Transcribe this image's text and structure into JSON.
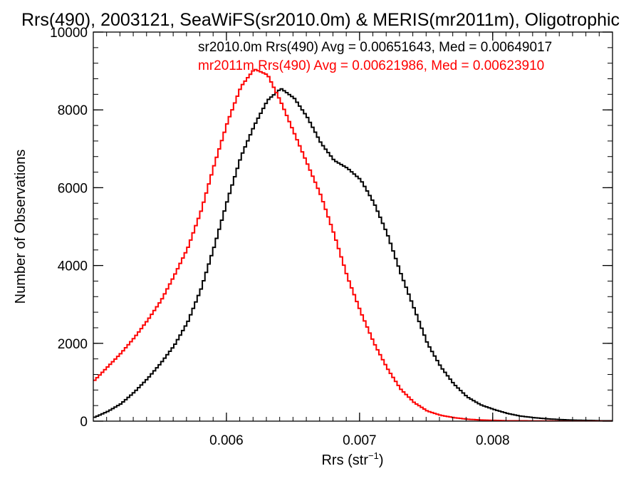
{
  "chart_data": {
    "type": "line",
    "title": "Rrs(490), 2003121, SeaWiFS(sr2010.0m) & MERIS(mr2011m), Oligotrophic",
    "xlabel": "Rrs (str",
    "xlabel_exponent": "−1",
    "xlabel_close": ")",
    "ylabel": "Number of Observations",
    "xlim": [
      0.005,
      0.0089
    ],
    "ylim": [
      0,
      10000
    ],
    "x_ticks": [
      0.006,
      0.007,
      0.008
    ],
    "x_tick_labels": [
      "0.006",
      "0.007",
      "0.008"
    ],
    "y_ticks": [
      0,
      2000,
      4000,
      6000,
      8000,
      10000
    ],
    "y_tick_labels": [
      "0",
      "2000",
      "4000",
      "6000",
      "8000",
      "10000"
    ],
    "grid": false,
    "legend_position": "top-right",
    "legend": [
      "sr2010.0m Rrs(490) Avg = 0.00651643, Med = 0.00649017",
      "mr2011m Rrs(490) Avg = 0.00621986, Med = 0.00623910"
    ],
    "series": [
      {
        "name": "sr2010.0m",
        "color": "#000000",
        "x": [
          0.005,
          0.0051,
          0.0052,
          0.0053,
          0.0054,
          0.0055,
          0.0056,
          0.0057,
          0.0058,
          0.0059,
          0.006,
          0.0061,
          0.0062,
          0.0063,
          0.0064,
          0.0065,
          0.0066,
          0.0067,
          0.0068,
          0.0069,
          0.007,
          0.0071,
          0.0072,
          0.0073,
          0.0074,
          0.0075,
          0.0076,
          0.0077,
          0.0078,
          0.0079,
          0.008,
          0.0081,
          0.0082,
          0.0083,
          0.0084,
          0.0085,
          0.0086,
          0.0087,
          0.0088,
          0.0089
        ],
        "values": [
          100,
          250,
          450,
          750,
          1100,
          1500,
          1950,
          2550,
          3400,
          4500,
          5700,
          6800,
          7600,
          8250,
          8550,
          8300,
          7800,
          7150,
          6700,
          6500,
          6200,
          5600,
          4800,
          3800,
          2900,
          2000,
          1400,
          950,
          620,
          420,
          300,
          200,
          130,
          90,
          60,
          40,
          25,
          20,
          10,
          10
        ]
      },
      {
        "name": "mr2011m",
        "color": "#ff0000",
        "x": [
          0.005,
          0.0051,
          0.0052,
          0.0053,
          0.0054,
          0.0055,
          0.0056,
          0.0057,
          0.0058,
          0.0059,
          0.006,
          0.0061,
          0.0062,
          0.0063,
          0.0064,
          0.0065,
          0.0066,
          0.0067,
          0.0068,
          0.0069,
          0.007,
          0.0071,
          0.0072,
          0.0073,
          0.0074,
          0.0075,
          0.0076,
          0.0077,
          0.0078,
          0.0079,
          0.008,
          0.0081,
          0.0082,
          0.0083,
          0.0084,
          0.0085,
          0.0086,
          0.0087,
          0.0088,
          0.0089
        ],
        "values": [
          1050,
          1400,
          1750,
          2150,
          2600,
          3100,
          3750,
          4450,
          5400,
          6600,
          7700,
          8600,
          9050,
          8900,
          8200,
          7400,
          6600,
          5800,
          4800,
          3700,
          2800,
          2000,
          1350,
          820,
          480,
          260,
          150,
          90,
          50,
          30,
          20,
          10,
          10,
          5,
          5,
          0,
          0,
          0,
          0,
          0
        ]
      }
    ]
  }
}
